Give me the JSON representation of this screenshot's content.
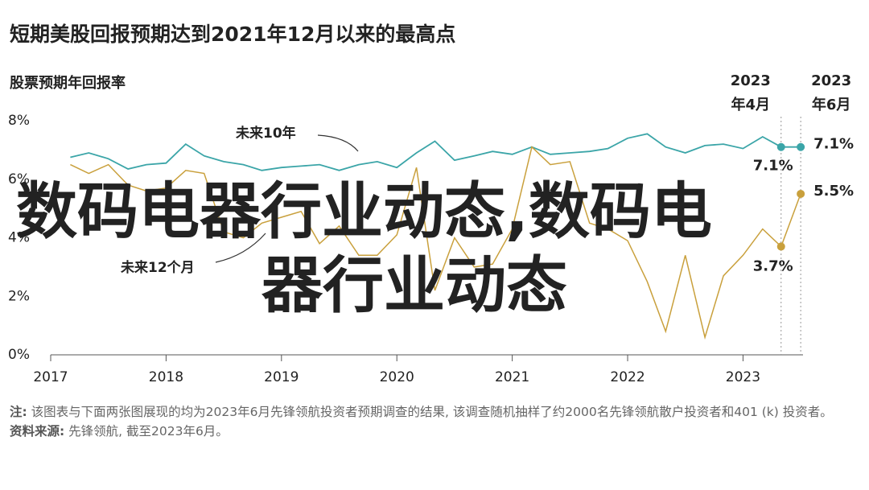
{
  "chart_data": {
    "type": "line",
    "title": "短期美股回报预期达到2021年12月以来的最高点",
    "subtitle": "股票预期年回报率",
    "x": [
      2017.17,
      2017.33,
      2017.5,
      2017.67,
      2017.83,
      2018.0,
      2018.17,
      2018.33,
      2018.5,
      2018.67,
      2018.83,
      2019.0,
      2019.17,
      2019.33,
      2019.5,
      2019.67,
      2019.83,
      2020.0,
      2020.17,
      2020.33,
      2020.5,
      2020.67,
      2020.83,
      2021.0,
      2021.17,
      2021.33,
      2021.5,
      2021.67,
      2021.83,
      2022.0,
      2022.17,
      2022.33,
      2022.5,
      2022.67,
      2022.83,
      2023.0,
      2023.17,
      2023.33,
      2023.5
    ],
    "series": [
      {
        "name": "未来10年",
        "color": "#3ba5a8",
        "values": [
          6.75,
          6.9,
          6.7,
          6.35,
          6.5,
          6.55,
          7.2,
          6.8,
          6.6,
          6.5,
          6.3,
          6.4,
          6.45,
          6.5,
          6.3,
          6.5,
          6.6,
          6.4,
          6.9,
          7.3,
          6.65,
          6.8,
          6.95,
          6.85,
          7.1,
          6.85,
          6.9,
          6.95,
          7.05,
          7.4,
          7.55,
          7.1,
          6.9,
          7.15,
          7.2,
          7.05,
          7.45,
          7.1,
          7.1
        ],
        "value_labels": [
          null,
          null,
          null,
          null,
          null,
          null,
          null,
          null,
          null,
          null,
          null,
          null,
          null,
          null,
          null,
          null,
          null,
          null,
          null,
          null,
          null,
          null,
          null,
          null,
          null,
          null,
          null,
          null,
          null,
          null,
          null,
          null,
          null,
          null,
          null,
          null,
          null,
          "7.1%",
          "7.1%"
        ]
      },
      {
        "name": "未来12个月",
        "color": "#c9a03c",
        "values": [
          6.5,
          6.2,
          6.5,
          5.8,
          5.6,
          5.7,
          6.3,
          6.2,
          4.2,
          4.0,
          4.5,
          4.7,
          4.9,
          3.8,
          4.4,
          3.4,
          3.4,
          4.1,
          6.4,
          2.2,
          4.0,
          3.0,
          3.1,
          4.3,
          7.1,
          6.5,
          6.6,
          4.5,
          4.3,
          3.9,
          2.5,
          0.8,
          3.4,
          0.6,
          2.7,
          3.4,
          4.3,
          3.7,
          5.5
        ],
        "value_labels": [
          null,
          null,
          null,
          null,
          null,
          null,
          null,
          null,
          null,
          null,
          null,
          null,
          null,
          null,
          null,
          null,
          null,
          null,
          null,
          null,
          null,
          null,
          null,
          null,
          null,
          null,
          null,
          null,
          null,
          null,
          null,
          null,
          null,
          null,
          null,
          null,
          null,
          "3.7%",
          "5.5%"
        ]
      }
    ],
    "period_labels": [
      [
        "2023",
        "年4月"
      ],
      [
        "2023",
        "年6月"
      ]
    ],
    "xlim": [
      2017,
      2023.52
    ],
    "xticks": [
      2017,
      2018,
      2019,
      2020,
      2021,
      2022,
      2023
    ],
    "ylim": [
      0,
      8
    ],
    "yticks": [
      {
        "value": 0,
        "label": "0%"
      },
      {
        "value": 2,
        "label": "2%"
      },
      {
        "value": 4,
        "label": "4%"
      },
      {
        "value": 6,
        "label": "6%"
      },
      {
        "value": 8,
        "label": "8%"
      }
    ],
    "grid": false,
    "overlay_text": [
      "数码电器行业动态,数码电",
      "器行业动态"
    ],
    "note": {
      "label": "注:",
      "text": "该图表与下面两张图展现的均为2023年6月先锋领航投资者预期调查的结果, 该调查随机抽样了约2000名先锋领航散户投资者和401 (k) 投资者。"
    },
    "source": {
      "label": "资料来源:",
      "text": "先锋领航, 截至2023年6月。"
    }
  }
}
